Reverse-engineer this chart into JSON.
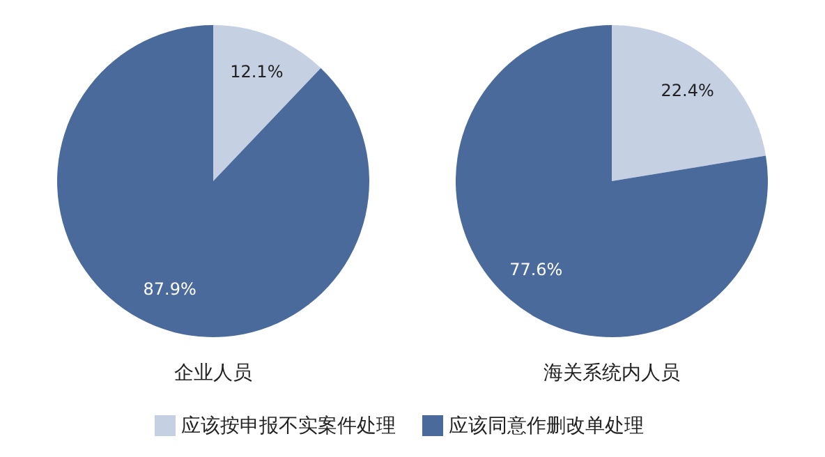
{
  "chart_data": [
    {
      "type": "pie",
      "title": "企业人员",
      "categories": [
        "应该按申报不实案件处理",
        "应该同意作删改单处理"
      ],
      "values": [
        12.1,
        87.9
      ],
      "colors": [
        "#c5d0e3",
        "#4a6a9b"
      ],
      "value_labels": [
        "12.1%",
        "87.9%"
      ],
      "legend": "bottom"
    },
    {
      "type": "pie",
      "title": "海关系统内人员",
      "categories": [
        null,
        null
      ],
      "values": [
        22.4,
        77.6
      ],
      "colors": [
        "#c5d0e3",
        "#4a6a9b"
      ],
      "value_labels": [
        "22.4%",
        "77.6%"
      ]
    }
  ]
}
